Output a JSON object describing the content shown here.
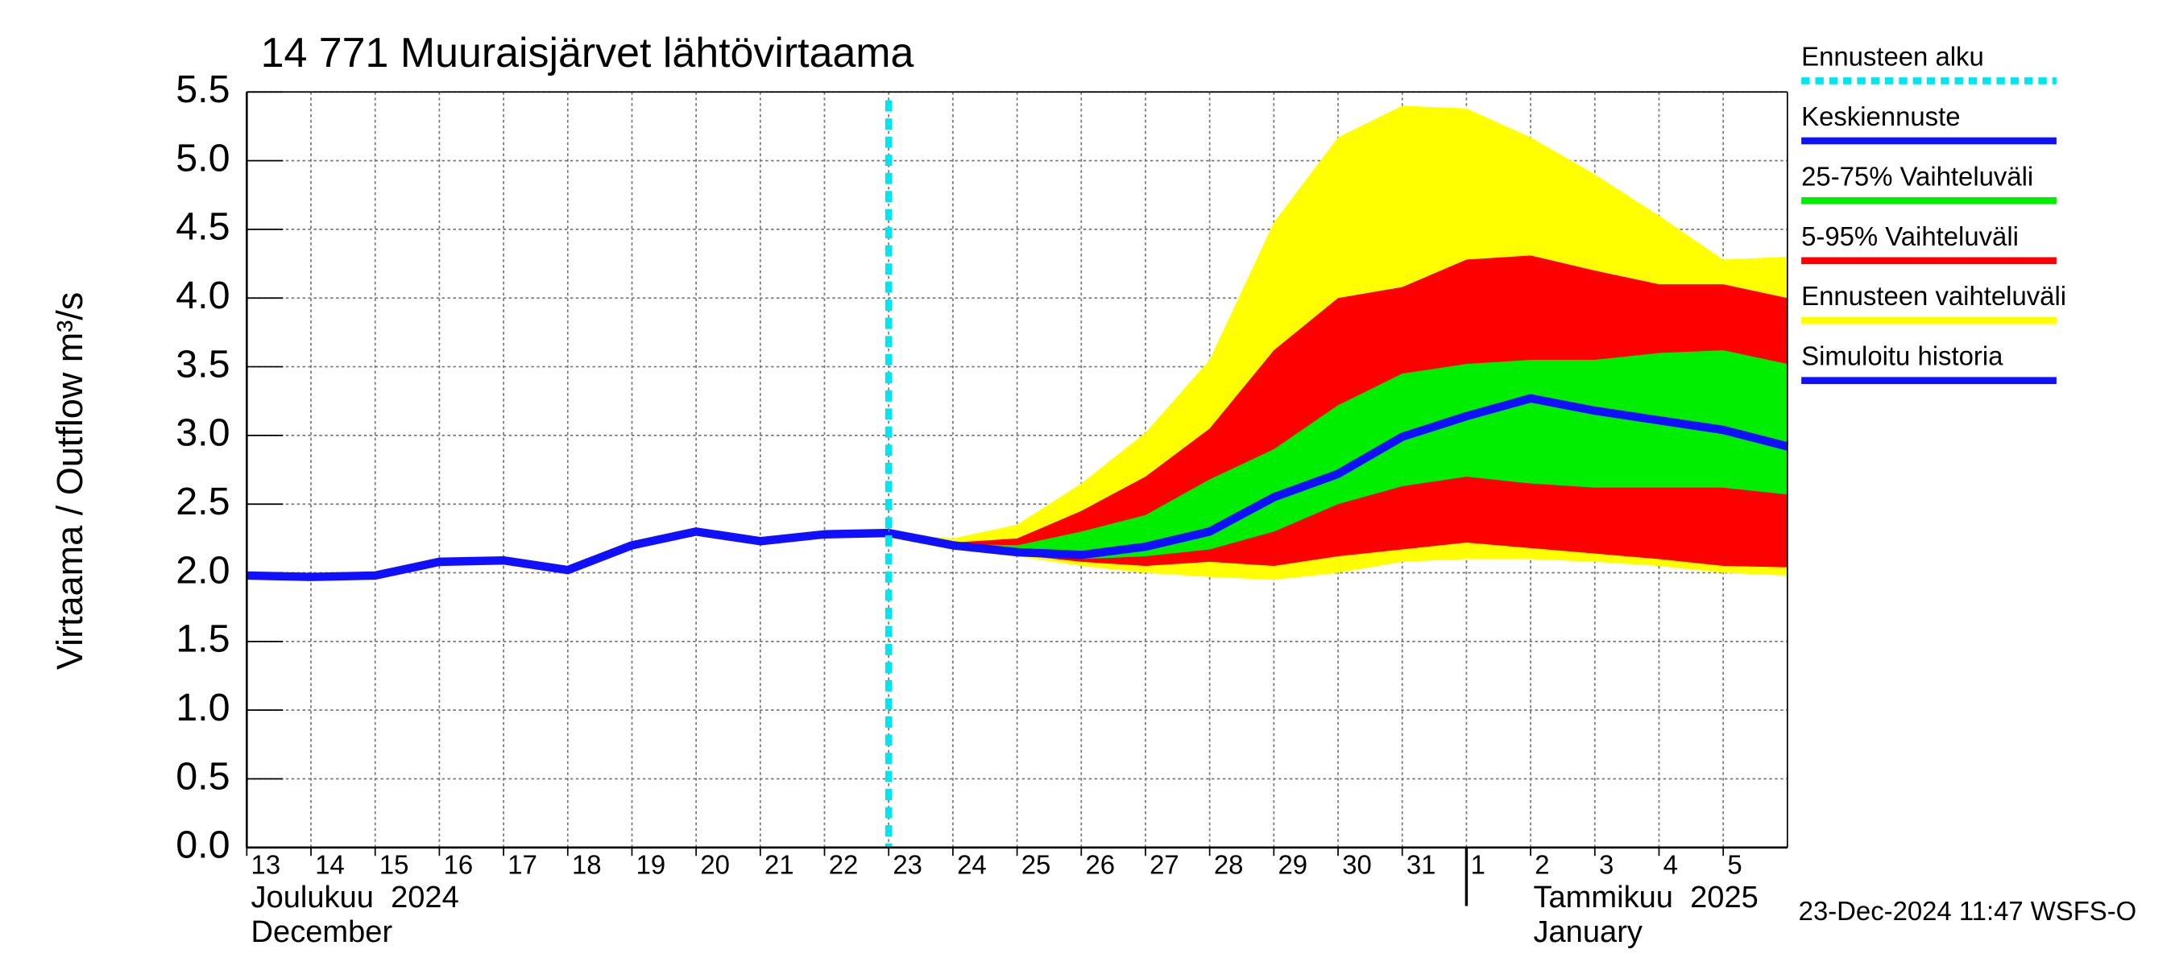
{
  "chart_data": {
    "type": "band-line",
    "title": "14 771 Muuraisjärvet lähtövirtaama",
    "y_label": "Virtaama / Outflow    m³/s",
    "x": [
      "2024-12-13",
      "2024-12-14",
      "2024-12-15",
      "2024-12-16",
      "2024-12-17",
      "2024-12-18",
      "2024-12-19",
      "2024-12-20",
      "2024-12-21",
      "2024-12-22",
      "2024-12-23",
      "2024-12-24",
      "2024-12-25",
      "2024-12-26",
      "2024-12-27",
      "2024-12-28",
      "2024-12-29",
      "2024-12-30",
      "2024-12-31",
      "2025-01-01",
      "2025-01-02",
      "2025-01-03",
      "2025-01-04",
      "2025-01-05",
      "2025-01-06"
    ],
    "xticks": [
      {
        "value": "2024-12-13",
        "label": "13"
      },
      {
        "value": "2024-12-14",
        "label": "14"
      },
      {
        "value": "2024-12-15",
        "label": "15"
      },
      {
        "value": "2024-12-16",
        "label": "16"
      },
      {
        "value": "2024-12-17",
        "label": "17"
      },
      {
        "value": "2024-12-18",
        "label": "18"
      },
      {
        "value": "2024-12-19",
        "label": "19"
      },
      {
        "value": "2024-12-20",
        "label": "20"
      },
      {
        "value": "2024-12-21",
        "label": "21"
      },
      {
        "value": "2024-12-22",
        "label": "22"
      },
      {
        "value": "2024-12-23",
        "label": "23"
      },
      {
        "value": "2024-12-24",
        "label": "24"
      },
      {
        "value": "2024-12-25",
        "label": "25"
      },
      {
        "value": "2024-12-26",
        "label": "26"
      },
      {
        "value": "2024-12-27",
        "label": "27"
      },
      {
        "value": "2024-12-28",
        "label": "28"
      },
      {
        "value": "2024-12-29",
        "label": "29"
      },
      {
        "value": "2024-12-30",
        "label": "30"
      },
      {
        "value": "2024-12-31",
        "label": "31"
      },
      {
        "value": "2025-01-01",
        "label": "1"
      },
      {
        "value": "2025-01-02",
        "label": "2"
      },
      {
        "value": "2025-01-03",
        "label": "3"
      },
      {
        "value": "2025-01-04",
        "label": "4"
      },
      {
        "value": "2025-01-05",
        "label": "5"
      }
    ],
    "month_labels": [
      {
        "x": "2024-12-13",
        "fi": "Joulukuu  2024",
        "en": "December"
      },
      {
        "x": "2025-01-01",
        "fi": "Tammikuu  2025",
        "en": "January"
      }
    ],
    "ylim": [
      0,
      5.5
    ],
    "yticks": [
      {
        "value": 0,
        "label": "0.0"
      },
      0.5,
      {
        "value": 1,
        "label": "1.0"
      },
      1.5,
      {
        "value": 2,
        "label": "2.0"
      },
      2.5,
      {
        "value": 3,
        "label": "3.0"
      },
      3.5,
      {
        "value": 4,
        "label": "4.0"
      },
      4.5,
      {
        "value": 5,
        "label": "5.0"
      },
      5.5
    ],
    "grid": true,
    "forecast_start": {
      "name": "Ennusteen alku",
      "x": "2024-12-23",
      "color": "#00e5ee"
    },
    "bands": [
      {
        "name": "Ennusteen vaihteluväli",
        "color": "#ffff00",
        "low": [
          null,
          null,
          null,
          null,
          null,
          null,
          null,
          null,
          null,
          null,
          2.29,
          2.2,
          2.12,
          2.05,
          2.0,
          1.97,
          1.95,
          2.0,
          2.08,
          2.1,
          2.1,
          2.08,
          2.05,
          2.0,
          1.98
        ],
        "high": [
          null,
          null,
          null,
          null,
          null,
          null,
          null,
          null,
          null,
          null,
          2.29,
          2.25,
          2.35,
          2.65,
          3.02,
          3.55,
          4.55,
          5.17,
          5.4,
          5.38,
          5.17,
          4.9,
          4.6,
          4.28,
          4.3
        ]
      },
      {
        "name": "5-95% Vaihteluväli",
        "color": "#ff0000",
        "low": [
          null,
          null,
          null,
          null,
          null,
          null,
          null,
          null,
          null,
          null,
          2.29,
          2.2,
          2.13,
          2.08,
          2.05,
          2.08,
          2.05,
          2.12,
          2.17,
          2.22,
          2.18,
          2.14,
          2.1,
          2.05,
          2.04
        ],
        "high": [
          null,
          null,
          null,
          null,
          null,
          null,
          null,
          null,
          null,
          null,
          2.29,
          2.22,
          2.25,
          2.45,
          2.7,
          3.05,
          3.62,
          4.0,
          4.08,
          4.28,
          4.31,
          4.2,
          4.1,
          4.1,
          4.0
        ]
      },
      {
        "name": "25-75% Vaihteluväli",
        "color": "#00ee00",
        "low": [
          null,
          null,
          null,
          null,
          null,
          null,
          null,
          null,
          null,
          null,
          2.29,
          2.2,
          2.15,
          2.1,
          2.12,
          2.17,
          2.3,
          2.5,
          2.63,
          2.7,
          2.65,
          2.62,
          2.62,
          2.62,
          2.57
        ],
        "high": [
          null,
          null,
          null,
          null,
          null,
          null,
          null,
          null,
          null,
          null,
          2.29,
          2.21,
          2.2,
          2.3,
          2.42,
          2.68,
          2.9,
          3.22,
          3.45,
          3.52,
          3.55,
          3.55,
          3.6,
          3.62,
          3.52
        ]
      }
    ],
    "series": [
      {
        "name": "Simuloitu historia",
        "color": "#1010ff",
        "values": [
          1.98,
          1.97,
          1.98,
          2.08,
          2.09,
          2.02,
          2.2,
          2.3,
          2.23,
          2.28,
          2.29,
          null,
          null,
          null,
          null,
          null,
          null,
          null,
          null,
          null,
          null,
          null,
          null,
          null,
          null
        ]
      },
      {
        "name": "Keskiennuste",
        "color": "#1010ff",
        "values": [
          null,
          null,
          null,
          null,
          null,
          null,
          null,
          null,
          null,
          null,
          2.29,
          2.2,
          2.15,
          2.13,
          2.19,
          2.3,
          2.55,
          2.72,
          2.99,
          3.14,
          3.27,
          3.18,
          3.11,
          3.04,
          2.92
        ]
      }
    ],
    "footer": "23-Dec-2024 11:47 WSFS-O"
  }
}
